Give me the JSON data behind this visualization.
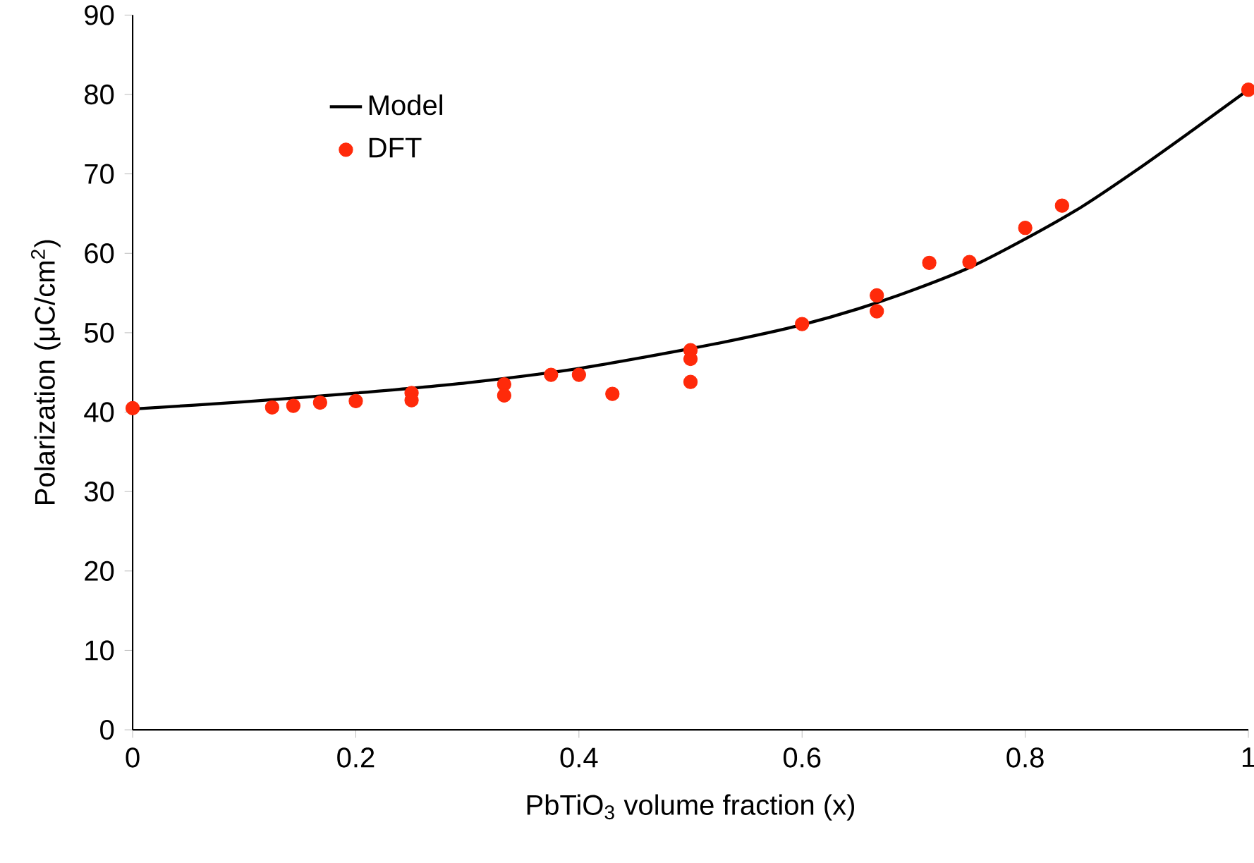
{
  "chart_data": {
    "type": "line",
    "xlabel": "PbTiO$_{3}$ volume fraction (x)",
    "ylabel": "Polarization (μC/cm$^{2}$)",
    "xlim": [
      0,
      1
    ],
    "ylim": [
      0,
      90
    ],
    "xticks": [
      0,
      0.2,
      0.4,
      0.6,
      0.8,
      1
    ],
    "yticks": [
      0,
      10,
      20,
      30,
      40,
      50,
      60,
      70,
      80,
      90
    ],
    "legend": "top left",
    "grid": false,
    "series": [
      {
        "name": "Model",
        "color": "#000000",
        "marker": "none",
        "line_style": "solid",
        "x": [
          0,
          0.1,
          0.2,
          0.3,
          0.4,
          0.5,
          0.55,
          0.6,
          0.65,
          0.7,
          0.75,
          0.8,
          0.85,
          0.9,
          0.95,
          1
        ],
        "values": [
          40.4,
          41.3,
          42.4,
          43.7,
          45.5,
          48.0,
          49.4,
          51.0,
          53.0,
          55.4,
          58.2,
          61.8,
          65.8,
          70.5,
          75.5,
          80.6
        ]
      },
      {
        "name": "DFT",
        "type": "scatter",
        "color": "#ff2a0a",
        "marker": "circle",
        "x": [
          0,
          0.125,
          0.144,
          0.168,
          0.2,
          0.25,
          0.25,
          0.333,
          0.333,
          0.375,
          0.4,
          0.43,
          0.5,
          0.5,
          0.5,
          0.6,
          0.667,
          0.667,
          0.714,
          0.75,
          0.8,
          0.833,
          1
        ],
        "values": [
          40.5,
          40.6,
          40.8,
          41.2,
          41.4,
          42.4,
          41.5,
          43.5,
          42.1,
          44.7,
          44.7,
          42.3,
          47.8,
          46.7,
          43.8,
          51.1,
          54.7,
          52.7,
          58.8,
          58.9,
          63.2,
          66.0,
          80.6
        ]
      }
    ]
  }
}
